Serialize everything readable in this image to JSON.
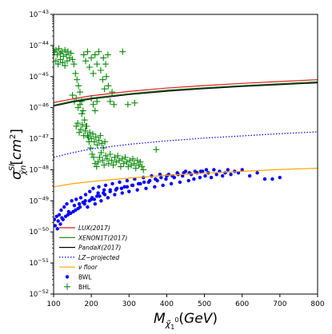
{
  "chart_data": {
    "type": "scatter",
    "xlabel": "M_{χ̃1^0} (GeV)",
    "ylabel": "σ^{SI}_{χ̃n} [cm²]",
    "xlim": [
      100,
      800
    ],
    "ylim_log10": [
      -52,
      -43
    ],
    "x_ticks": [
      100,
      200,
      300,
      400,
      500,
      600,
      700,
      800
    ],
    "y_ticks": [
      {
        "exp": -52,
        "label": "10−52"
      },
      {
        "exp": -51,
        "label": "10−51"
      },
      {
        "exp": -50,
        "label": "10−50"
      },
      {
        "exp": -49,
        "label": "10−49"
      },
      {
        "exp": -48,
        "label": "10−48"
      },
      {
        "exp": -47,
        "label": "10−47"
      },
      {
        "exp": -46,
        "label": "10−46"
      },
      {
        "exp": -45,
        "label": "10−45"
      },
      {
        "exp": -44,
        "label": "10−44"
      },
      {
        "exp": -43,
        "label": "10−43"
      }
    ],
    "legend_position": "lower-left",
    "lines": [
      {
        "name": "LUX(2017)",
        "color": "#e31a1c",
        "style": "solid",
        "x": [
          100,
          150,
          200,
          300,
          400,
          500,
          600,
          700,
          800
        ],
        "log10y": [
          -45.84,
          -45.72,
          -45.62,
          -45.48,
          -45.37,
          -45.29,
          -45.22,
          -45.16,
          -45.1
        ]
      },
      {
        "name": "XENON1T(2017)",
        "color": "#1a7d1a",
        "style": "solid",
        "x": [
          100,
          150,
          200,
          300,
          400,
          500,
          600,
          700,
          800
        ],
        "log10y": [
          -45.92,
          -45.79,
          -45.69,
          -45.55,
          -45.44,
          -45.36,
          -45.29,
          -45.23,
          -45.17
        ]
      },
      {
        "name": "PandaX(2017)",
        "color": "#000000",
        "style": "solid",
        "x": [
          100,
          150,
          200,
          300,
          400,
          500,
          600,
          700,
          800
        ],
        "log10y": [
          -45.95,
          -45.82,
          -45.72,
          -45.58,
          -45.47,
          -45.39,
          -45.32,
          -45.26,
          -45.2
        ]
      },
      {
        "name": "LZ−projected",
        "color": "#0000ff",
        "style": "dotted",
        "x": [
          100,
          150,
          200,
          300,
          400,
          500,
          600,
          700,
          800
        ],
        "log10y": [
          -47.6,
          -47.45,
          -47.33,
          -47.18,
          -47.07,
          -46.98,
          -46.91,
          -46.84,
          -46.78
        ]
      },
      {
        "name": "ν floor",
        "color": "#ffa500",
        "style": "solid",
        "x": [
          100,
          150,
          200,
          300,
          400,
          500,
          600,
          700,
          800
        ],
        "log10y": [
          -48.55,
          -48.45,
          -48.38,
          -48.27,
          -48.18,
          -48.11,
          -48.05,
          -47.99,
          -47.95
        ]
      }
    ],
    "scatter": [
      {
        "name": "BWL",
        "color": "#0000ff",
        "marker": "dot",
        "points": [
          [
            102,
            -49.6
          ],
          [
            108,
            -49.5
          ],
          [
            115,
            -49.45
          ],
          [
            120,
            -49.3
          ],
          [
            128,
            -49.2
          ],
          [
            135,
            -49.1
          ],
          [
            140,
            -49.35
          ],
          [
            148,
            -49.0
          ],
          [
            155,
            -49.15
          ],
          [
            160,
            -48.95
          ],
          [
            165,
            -49.25
          ],
          [
            172,
            -48.9
          ],
          [
            178,
            -49.05
          ],
          [
            185,
            -48.8
          ],
          [
            190,
            -49.2
          ],
          [
            196,
            -48.7
          ],
          [
            200,
            -48.95
          ],
          [
            205,
            -48.6
          ],
          [
            210,
            -49.1
          ],
          [
            215,
            -48.85
          ],
          [
            220,
            -48.55
          ],
          [
            226,
            -49.0
          ],
          [
            232,
            -48.75
          ],
          [
            238,
            -48.5
          ],
          [
            244,
            -48.9
          ],
          [
            250,
            -48.65
          ],
          [
            256,
            -48.45
          ],
          [
            262,
            -48.8
          ],
          [
            268,
            -48.6
          ],
          [
            275,
            -48.4
          ],
          [
            282,
            -48.75
          ],
          [
            288,
            -48.55
          ],
          [
            295,
            -48.35
          ],
          [
            300,
            -48.7
          ],
          [
            308,
            -48.5
          ],
          [
            315,
            -48.3
          ],
          [
            322,
            -48.65
          ],
          [
            330,
            -48.45
          ],
          [
            338,
            -48.25
          ],
          [
            345,
            -48.6
          ],
          [
            352,
            -48.4
          ],
          [
            360,
            -48.2
          ],
          [
            368,
            -48.55
          ],
          [
            375,
            -48.35
          ],
          [
            382,
            -48.15
          ],
          [
            390,
            -48.5
          ],
          [
            398,
            -48.3
          ],
          [
            405,
            -48.15
          ],
          [
            412,
            -48.45
          ],
          [
            420,
            -48.25
          ],
          [
            428,
            -48.1
          ],
          [
            435,
            -48.4
          ],
          [
            442,
            -48.2
          ],
          [
            450,
            -48.05
          ],
          [
            458,
            -48.35
          ],
          [
            465,
            -48.15
          ],
          [
            472,
            -48.3
          ],
          [
            480,
            -48.1
          ],
          [
            488,
            -48.25
          ],
          [
            495,
            -48.05
          ],
          [
            502,
            -48.2
          ],
          [
            510,
            -48.1
          ],
          [
            518,
            -48.25
          ],
          [
            525,
            -48.0
          ],
          [
            532,
            -48.15
          ],
          [
            540,
            -48.05
          ],
          [
            548,
            -48.2
          ],
          [
            555,
            -48.1
          ],
          [
            562,
            -48.0
          ],
          [
            570,
            -48.15
          ],
          [
            580,
            -48.05
          ],
          [
            590,
            -48.1
          ],
          [
            600,
            -48.0
          ],
          [
            620,
            -48.2
          ],
          [
            640,
            -48.1
          ],
          [
            660,
            -48.3
          ],
          [
            680,
            -48.3
          ],
          [
            700,
            -48.25
          ],
          [
            110,
            -49.9
          ],
          [
            118,
            -49.75
          ],
          [
            125,
            -49.6
          ],
          [
            132,
            -49.5
          ],
          [
            145,
            -49.4
          ],
          [
            158,
            -49.3
          ],
          [
            170,
            -49.2
          ],
          [
            182,
            -49.1
          ],
          [
            195,
            -49.0
          ],
          [
            208,
            -48.95
          ],
          [
            222,
            -48.85
          ],
          [
            236,
            -48.8
          ],
          [
            250,
            -48.7
          ],
          [
            265,
            -48.65
          ],
          [
            280,
            -48.6
          ],
          [
            295,
            -48.55
          ],
          [
            310,
            -48.5
          ],
          [
            325,
            -48.45
          ],
          [
            340,
            -48.4
          ],
          [
            355,
            -48.35
          ],
          [
            370,
            -48.3
          ],
          [
            385,
            -48.25
          ],
          [
            400,
            -48.2
          ],
          [
            415,
            -48.2
          ],
          [
            430,
            -48.15
          ],
          [
            445,
            -48.1
          ],
          [
            460,
            -48.1
          ],
          [
            475,
            -48.05
          ],
          [
            490,
            -48.05
          ],
          [
            505,
            -48.0
          ],
          [
            104,
            -49.8
          ],
          [
            112,
            -49.65
          ],
          [
            122,
            -49.55
          ],
          [
            138,
            -49.45
          ],
          [
            152,
            -49.35
          ],
          [
            168,
            -49.1
          ],
          [
            184,
            -49.0
          ],
          [
            202,
            -48.9
          ],
          [
            218,
            -48.75
          ],
          [
            234,
            -48.65
          ]
        ]
      },
      {
        "name": "BHL",
        "color": "#0a8a0a",
        "marker": "plus",
        "points": [
          [
            102,
            -44.2
          ],
          [
            106,
            -44.15
          ],
          [
            110,
            -44.3
          ],
          [
            114,
            -44.1
          ],
          [
            118,
            -44.25
          ],
          [
            122,
            -44.2
          ],
          [
            126,
            -44.35
          ],
          [
            130,
            -44.15
          ],
          [
            134,
            -44.3
          ],
          [
            138,
            -44.2
          ],
          [
            142,
            -44.4
          ],
          [
            146,
            -44.25
          ],
          [
            150,
            -44.45
          ],
          [
            154,
            -44.6
          ],
          [
            158,
            -44.9
          ],
          [
            162,
            -45.1
          ],
          [
            166,
            -45.3
          ],
          [
            170,
            -45.5
          ],
          [
            174,
            -45.8
          ],
          [
            178,
            -46.1
          ],
          [
            182,
            -46.4
          ],
          [
            186,
            -46.6
          ],
          [
            190,
            -46.9
          ],
          [
            194,
            -47.1
          ],
          [
            198,
            -47.3
          ],
          [
            202,
            -47.5
          ],
          [
            206,
            -47.6
          ],
          [
            210,
            -47.8
          ],
          [
            214,
            -47.9
          ],
          [
            218,
            -47.75
          ],
          [
            222,
            -47.6
          ],
          [
            226,
            -47.45
          ],
          [
            230,
            -47.7
          ],
          [
            234,
            -47.85
          ],
          [
            238,
            -47.55
          ],
          [
            242,
            -47.65
          ],
          [
            246,
            -47.8
          ],
          [
            250,
            -47.5
          ],
          [
            254,
            -47.7
          ],
          [
            258,
            -47.85
          ],
          [
            262,
            -47.6
          ],
          [
            266,
            -47.75
          ],
          [
            270,
            -47.55
          ],
          [
            274,
            -47.7
          ],
          [
            278,
            -47.9
          ],
          [
            282,
            -47.65
          ],
          [
            286,
            -47.8
          ],
          [
            290,
            -47.6
          ],
          [
            294,
            -47.75
          ],
          [
            298,
            -47.9
          ],
          [
            302,
            -47.7
          ],
          [
            306,
            -47.85
          ],
          [
            310,
            -47.65
          ],
          [
            314,
            -47.8
          ],
          [
            318,
            -47.95
          ],
          [
            322,
            -47.7
          ],
          [
            326,
            -47.85
          ],
          [
            330,
            -47.75
          ],
          [
            334,
            -47.9
          ],
          [
            338,
            -48.0
          ],
          [
            180,
            -44.3
          ],
          [
            185,
            -44.5
          ],
          [
            190,
            -44.2
          ],
          [
            195,
            -44.7
          ],
          [
            200,
            -44.4
          ],
          [
            205,
            -44.9
          ],
          [
            210,
            -44.3
          ],
          [
            215,
            -44.6
          ],
          [
            220,
            -44.2
          ],
          [
            225,
            -44.8
          ],
          [
            230,
            -45.1
          ],
          [
            235,
            -45.4
          ],
          [
            240,
            -45.0
          ],
          [
            245,
            -45.3
          ],
          [
            250,
            -45.8
          ],
          [
            255,
            -45.5
          ],
          [
            260,
            -45.9
          ],
          [
            232,
            -44.4
          ],
          [
            238,
            -44.6
          ],
          [
            244,
            -44.3
          ],
          [
            160,
            -46.6
          ],
          [
            164,
            -46.5
          ],
          [
            168,
            -46.8
          ],
          [
            172,
            -46.7
          ],
          [
            176,
            -46.55
          ],
          [
            180,
            -46.9
          ],
          [
            184,
            -46.75
          ],
          [
            188,
            -46.6
          ],
          [
            192,
            -46.95
          ],
          [
            196,
            -46.8
          ],
          [
            200,
            -47.0
          ],
          [
            204,
            -46.85
          ],
          [
            208,
            -47.1
          ],
          [
            212,
            -46.95
          ],
          [
            216,
            -47.2
          ],
          [
            220,
            -47.05
          ],
          [
            224,
            -46.9
          ],
          [
            228,
            -47.15
          ],
          [
            232,
            -47.3
          ],
          [
            236,
            -47.1
          ],
          [
            150,
            -45.6
          ],
          [
            155,
            -45.8
          ],
          [
            160,
            -45.7
          ],
          [
            165,
            -46.0
          ],
          [
            170,
            -45.9
          ],
          [
            175,
            -46.2
          ],
          [
            200,
            -45.7
          ],
          [
            205,
            -45.9
          ],
          [
            210,
            -46.1
          ],
          [
            215,
            -45.8
          ],
          [
            283,
            -44.2
          ],
          [
            297,
            -45.9
          ],
          [
            315,
            -45.85
          ],
          [
            372,
            -47.35
          ],
          [
            106,
            -44.5
          ],
          [
            112,
            -44.6
          ],
          [
            118,
            -44.45
          ],
          [
            124,
            -44.55
          ],
          [
            130,
            -44.65
          ],
          [
            136,
            -44.5
          ]
        ]
      }
    ],
    "legend": [
      {
        "label": "LUX(2017)",
        "kind": "line",
        "color": "#e31a1c",
        "style": "solid"
      },
      {
        "label": "XENON1T(2017)",
        "kind": "line",
        "color": "#1a7d1a",
        "style": "solid"
      },
      {
        "label": "PandaX(2017)",
        "kind": "line",
        "color": "#000000",
        "style": "solid"
      },
      {
        "label": "LZ−projected",
        "kind": "line",
        "color": "#0000ff",
        "style": "dotted"
      },
      {
        "label": "ν floor",
        "kind": "line",
        "color": "#ffa500",
        "style": "solid"
      },
      {
        "label": "BWL",
        "kind": "dot",
        "color": "#0000ff"
      },
      {
        "label": "BHL",
        "kind": "plus",
        "color": "#0a8a0a"
      }
    ]
  }
}
